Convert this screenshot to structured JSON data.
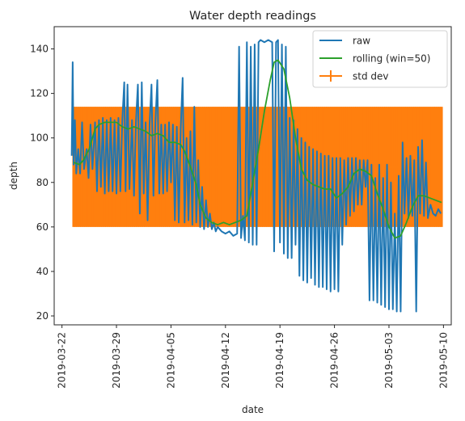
{
  "chart_data": {
    "type": "line",
    "title": "Water depth readings",
    "xlabel": "date",
    "ylabel": "depth",
    "xlim": [
      "2019-03-21T00:00",
      "2019-05-11T00:00"
    ],
    "ylim": [
      16,
      150
    ],
    "x_ticks": [
      "2019-03-22",
      "2019-03-29",
      "2019-04-05",
      "2019-04-12",
      "2019-04-19",
      "2019-04-26",
      "2019-05-03",
      "2019-05-10"
    ],
    "y_ticks": [
      20,
      40,
      60,
      80,
      100,
      120,
      140
    ],
    "grid": false,
    "legend": {
      "placement": "top-right"
    },
    "colors": {
      "raw": "#1f77b4",
      "rolling": "#2ca02c",
      "std": "#ff7f0e"
    },
    "series": [
      {
        "name": "raw",
        "color": "#1f77b4",
        "points": [
          [
            "2019-03-23T06:00",
            92
          ],
          [
            "2019-03-23T09:00",
            134
          ],
          [
            "2019-03-23T12:00",
            88
          ],
          [
            "2019-03-23T16:00",
            108
          ],
          [
            "2019-03-23T20:00",
            84
          ],
          [
            "2019-03-24T02:00",
            95
          ],
          [
            "2019-03-24T08:00",
            84
          ],
          [
            "2019-03-24T14:00",
            107
          ],
          [
            "2019-03-24T20:00",
            86
          ],
          [
            "2019-03-25T04:00",
            95
          ],
          [
            "2019-03-25T10:00",
            82
          ],
          [
            "2019-03-25T16:00",
            106
          ],
          [
            "2019-03-25T22:00",
            86
          ],
          [
            "2019-03-26T06:00",
            107
          ],
          [
            "2019-03-26T12:00",
            76
          ],
          [
            "2019-03-26T18:00",
            108
          ],
          [
            "2019-03-27T00:00",
            78
          ],
          [
            "2019-03-27T06:00",
            109
          ],
          [
            "2019-03-27T12:00",
            75
          ],
          [
            "2019-03-27T18:00",
            108
          ],
          [
            "2019-03-28T00:00",
            76
          ],
          [
            "2019-03-28T06:00",
            109
          ],
          [
            "2019-03-28T12:00",
            76
          ],
          [
            "2019-03-28T18:00",
            108
          ],
          [
            "2019-03-29T00:00",
            75
          ],
          [
            "2019-03-29T06:00",
            109
          ],
          [
            "2019-03-29T12:00",
            76
          ],
          [
            "2019-03-29T18:00",
            108
          ],
          [
            "2019-03-30T00:00",
            125
          ],
          [
            "2019-03-30T04:00",
            76
          ],
          [
            "2019-03-30T10:00",
            124
          ],
          [
            "2019-03-30T16:00",
            77
          ],
          [
            "2019-03-31T00:00",
            108
          ],
          [
            "2019-03-31T06:00",
            74
          ],
          [
            "2019-03-31T12:00",
            107
          ],
          [
            "2019-03-31T18:00",
            124
          ],
          [
            "2019-04-01T00:00",
            66
          ],
          [
            "2019-04-01T06:00",
            125
          ],
          [
            "2019-04-01T12:00",
            75
          ],
          [
            "2019-04-01T18:00",
            107
          ],
          [
            "2019-04-02T00:00",
            63
          ],
          [
            "2019-04-02T06:00",
            106
          ],
          [
            "2019-04-02T12:00",
            124
          ],
          [
            "2019-04-02T18:00",
            74
          ],
          [
            "2019-04-03T00:00",
            107
          ],
          [
            "2019-04-03T06:00",
            126
          ],
          [
            "2019-04-03T12:00",
            75
          ],
          [
            "2019-04-03T18:00",
            106
          ],
          [
            "2019-04-04T00:00",
            75
          ],
          [
            "2019-04-04T06:00",
            106
          ],
          [
            "2019-04-04T12:00",
            76
          ],
          [
            "2019-04-04T18:00",
            107
          ],
          [
            "2019-04-05T00:00",
            80
          ],
          [
            "2019-04-05T06:00",
            106
          ],
          [
            "2019-04-05T12:00",
            63
          ],
          [
            "2019-04-05T18:00",
            105
          ],
          [
            "2019-04-06T00:00",
            62
          ],
          [
            "2019-04-06T06:00",
            104
          ],
          [
            "2019-04-06T12:00",
            127
          ],
          [
            "2019-04-06T18:00",
            62
          ],
          [
            "2019-04-07T00:00",
            100
          ],
          [
            "2019-04-07T06:00",
            63
          ],
          [
            "2019-04-07T12:00",
            103
          ],
          [
            "2019-04-07T18:00",
            61
          ],
          [
            "2019-04-08T00:00",
            114
          ],
          [
            "2019-04-08T06:00",
            62
          ],
          [
            "2019-04-08T12:00",
            90
          ],
          [
            "2019-04-08T18:00",
            60
          ],
          [
            "2019-04-09T00:00",
            78
          ],
          [
            "2019-04-09T06:00",
            59
          ],
          [
            "2019-04-09T12:00",
            72
          ],
          [
            "2019-04-09T18:00",
            60
          ],
          [
            "2019-04-10T00:00",
            66
          ],
          [
            "2019-04-10T06:00",
            59
          ],
          [
            "2019-04-10T12:00",
            62
          ],
          [
            "2019-04-10T18:00",
            58
          ],
          [
            "2019-04-11T00:00",
            60
          ],
          [
            "2019-04-11T12:00",
            58
          ],
          [
            "2019-04-12T00:00",
            57
          ],
          [
            "2019-04-12T12:00",
            58
          ],
          [
            "2019-04-13T00:00",
            56
          ],
          [
            "2019-04-13T12:00",
            57
          ],
          [
            "2019-04-13T18:00",
            141
          ],
          [
            "2019-04-14T00:00",
            55
          ],
          [
            "2019-04-14T06:00",
            65
          ],
          [
            "2019-04-14T12:00",
            54
          ],
          [
            "2019-04-14T18:00",
            143
          ],
          [
            "2019-04-15T00:00",
            53
          ],
          [
            "2019-04-15T06:00",
            141
          ],
          [
            "2019-04-15T12:00",
            52
          ],
          [
            "2019-04-15T18:00",
            142
          ],
          [
            "2019-04-16T00:00",
            52
          ],
          [
            "2019-04-16T06:00",
            143
          ],
          [
            "2019-04-16T12:00",
            144
          ],
          [
            "2019-04-17T00:00",
            143
          ],
          [
            "2019-04-17T12:00",
            144
          ],
          [
            "2019-04-18T00:00",
            143
          ],
          [
            "2019-04-18T06:00",
            49
          ],
          [
            "2019-04-18T12:00",
            143
          ],
          [
            "2019-04-18T18:00",
            144
          ],
          [
            "2019-04-19T00:00",
            53
          ],
          [
            "2019-04-19T06:00",
            142
          ],
          [
            "2019-04-19T12:00",
            48
          ],
          [
            "2019-04-19T18:00",
            141
          ],
          [
            "2019-04-20T00:00",
            46
          ],
          [
            "2019-04-20T06:00",
            109
          ],
          [
            "2019-04-20T12:00",
            46
          ],
          [
            "2019-04-20T18:00",
            108
          ],
          [
            "2019-04-21T00:00",
            52
          ],
          [
            "2019-04-21T06:00",
            104
          ],
          [
            "2019-04-21T12:00",
            38
          ],
          [
            "2019-04-21T18:00",
            100
          ],
          [
            "2019-04-22T00:00",
            36
          ],
          [
            "2019-04-22T06:00",
            98
          ],
          [
            "2019-04-22T12:00",
            35
          ],
          [
            "2019-04-22T18:00",
            96
          ],
          [
            "2019-04-23T00:00",
            37
          ],
          [
            "2019-04-23T06:00",
            95
          ],
          [
            "2019-04-23T12:00",
            34
          ],
          [
            "2019-04-23T18:00",
            94
          ],
          [
            "2019-04-24T00:00",
            33
          ],
          [
            "2019-04-24T06:00",
            93
          ],
          [
            "2019-04-24T12:00",
            33
          ],
          [
            "2019-04-24T18:00",
            92
          ],
          [
            "2019-04-25T00:00",
            32
          ],
          [
            "2019-04-25T06:00",
            92
          ],
          [
            "2019-04-25T12:00",
            31
          ],
          [
            "2019-04-25T18:00",
            91
          ],
          [
            "2019-04-26T00:00",
            32
          ],
          [
            "2019-04-26T06:00",
            91
          ],
          [
            "2019-04-26T12:00",
            31
          ],
          [
            "2019-04-26T18:00",
            91
          ],
          [
            "2019-04-27T00:00",
            52
          ],
          [
            "2019-04-27T06:00",
            90
          ],
          [
            "2019-04-27T12:00",
            61
          ],
          [
            "2019-04-27T18:00",
            91
          ],
          [
            "2019-04-28T00:00",
            65
          ],
          [
            "2019-04-28T06:00",
            91
          ],
          [
            "2019-04-28T12:00",
            67
          ],
          [
            "2019-04-28T18:00",
            91
          ],
          [
            "2019-04-29T00:00",
            70
          ],
          [
            "2019-04-29T06:00",
            90
          ],
          [
            "2019-04-29T12:00",
            70
          ],
          [
            "2019-04-29T18:00",
            90
          ],
          [
            "2019-04-30T00:00",
            78
          ],
          [
            "2019-04-30T06:00",
            90
          ],
          [
            "2019-04-30T12:00",
            27
          ],
          [
            "2019-04-30T18:00",
            88
          ],
          [
            "2019-05-01T00:00",
            27
          ],
          [
            "2019-05-01T06:00",
            82
          ],
          [
            "2019-05-01T12:00",
            26
          ],
          [
            "2019-05-01T18:00",
            88
          ],
          [
            "2019-05-02T00:00",
            25
          ],
          [
            "2019-05-02T06:00",
            82
          ],
          [
            "2019-05-02T12:00",
            24
          ],
          [
            "2019-05-02T18:00",
            88
          ],
          [
            "2019-05-03T00:00",
            23
          ],
          [
            "2019-05-03T06:00",
            80
          ],
          [
            "2019-05-03T12:00",
            23
          ],
          [
            "2019-05-03T18:00",
            66
          ],
          [
            "2019-05-04T00:00",
            22
          ],
          [
            "2019-05-04T06:00",
            83
          ],
          [
            "2019-05-04T12:00",
            22
          ],
          [
            "2019-05-04T18:00",
            98
          ],
          [
            "2019-05-05T00:00",
            66
          ],
          [
            "2019-05-05T06:00",
            91
          ],
          [
            "2019-05-05T12:00",
            64
          ],
          [
            "2019-05-05T18:00",
            92
          ],
          [
            "2019-05-06T00:00",
            65
          ],
          [
            "2019-05-06T06:00",
            90
          ],
          [
            "2019-05-06T12:00",
            22
          ],
          [
            "2019-05-06T18:00",
            96
          ],
          [
            "2019-05-07T00:00",
            66
          ],
          [
            "2019-05-07T06:00",
            99
          ],
          [
            "2019-05-07T12:00",
            65
          ],
          [
            "2019-05-07T18:00",
            89
          ],
          [
            "2019-05-08T00:00",
            64
          ],
          [
            "2019-05-08T08:00",
            70
          ],
          [
            "2019-05-08T16:00",
            66
          ],
          [
            "2019-05-09T00:00",
            65
          ],
          [
            "2019-05-09T08:00",
            68
          ],
          [
            "2019-05-09T16:00",
            66
          ]
        ]
      },
      {
        "name": "rolling (win=50)",
        "color": "#2ca02c",
        "points": [
          [
            "2019-03-23T12:00",
            89
          ],
          [
            "2019-03-24T06:00",
            88
          ],
          [
            "2019-03-24T18:00",
            90
          ],
          [
            "2019-03-25T12:00",
            95
          ],
          [
            "2019-03-26T06:00",
            104
          ],
          [
            "2019-03-26T18:00",
            106
          ],
          [
            "2019-03-27T12:00",
            107
          ],
          [
            "2019-03-28T06:00",
            107
          ],
          [
            "2019-03-29T00:00",
            107
          ],
          [
            "2019-03-29T18:00",
            105
          ],
          [
            "2019-03-30T12:00",
            104
          ],
          [
            "2019-03-31T06:00",
            105
          ],
          [
            "2019-04-01T00:00",
            104
          ],
          [
            "2019-04-01T18:00",
            103
          ],
          [
            "2019-04-02T12:00",
            101
          ],
          [
            "2019-04-03T06:00",
            102
          ],
          [
            "2019-04-04T00:00",
            101
          ],
          [
            "2019-04-04T18:00",
            98
          ],
          [
            "2019-04-05T12:00",
            98
          ],
          [
            "2019-04-06T06:00",
            97
          ],
          [
            "2019-04-06T18:00",
            94
          ],
          [
            "2019-04-07T12:00",
            87
          ],
          [
            "2019-04-08T06:00",
            79
          ],
          [
            "2019-04-08T18:00",
            70
          ],
          [
            "2019-04-09T12:00",
            64
          ],
          [
            "2019-04-10T06:00",
            62
          ],
          [
            "2019-04-11T00:00",
            61
          ],
          [
            "2019-04-11T18:00",
            62
          ],
          [
            "2019-04-12T12:00",
            61
          ],
          [
            "2019-04-13T06:00",
            62
          ],
          [
            "2019-04-14T00:00",
            63
          ],
          [
            "2019-04-14T18:00",
            65
          ],
          [
            "2019-04-15T12:00",
            80
          ],
          [
            "2019-04-16T06:00",
            95
          ],
          [
            "2019-04-17T00:00",
            112
          ],
          [
            "2019-04-17T18:00",
            126
          ],
          [
            "2019-04-18T06:00",
            134
          ],
          [
            "2019-04-18T18:00",
            135
          ],
          [
            "2019-04-19T12:00",
            131
          ],
          [
            "2019-04-20T06:00",
            118
          ],
          [
            "2019-04-21T00:00",
            100
          ],
          [
            "2019-04-21T18:00",
            86
          ],
          [
            "2019-04-22T12:00",
            81
          ],
          [
            "2019-04-23T06:00",
            79
          ],
          [
            "2019-04-24T00:00",
            78
          ],
          [
            "2019-04-24T18:00",
            77
          ],
          [
            "2019-04-25T12:00",
            77
          ],
          [
            "2019-04-26T06:00",
            73
          ],
          [
            "2019-04-27T00:00",
            75
          ],
          [
            "2019-04-27T18:00",
            78
          ],
          [
            "2019-04-28T12:00",
            84
          ],
          [
            "2019-04-29T06:00",
            86
          ],
          [
            "2019-04-30T00:00",
            85
          ],
          [
            "2019-04-30T18:00",
            83
          ],
          [
            "2019-05-01T12:00",
            75
          ],
          [
            "2019-05-02T06:00",
            68
          ],
          [
            "2019-05-03T00:00",
            60
          ],
          [
            "2019-05-03T18:00",
            55
          ],
          [
            "2019-05-04T12:00",
            56
          ],
          [
            "2019-05-05T06:00",
            62
          ],
          [
            "2019-05-06T00:00",
            69
          ],
          [
            "2019-05-06T18:00",
            74
          ],
          [
            "2019-05-07T12:00",
            74
          ],
          [
            "2019-05-08T06:00",
            73
          ],
          [
            "2019-05-09T00:00",
            72
          ],
          [
            "2019-05-09T18:00",
            71
          ]
        ]
      },
      {
        "name": "std dev",
        "type": "errorbar",
        "color": "#ff7f0e",
        "x_start": "2019-03-23T12:00",
        "x_end": "2019-05-09T18:00",
        "center": 87,
        "lower": 60,
        "upper": 114
      }
    ]
  }
}
